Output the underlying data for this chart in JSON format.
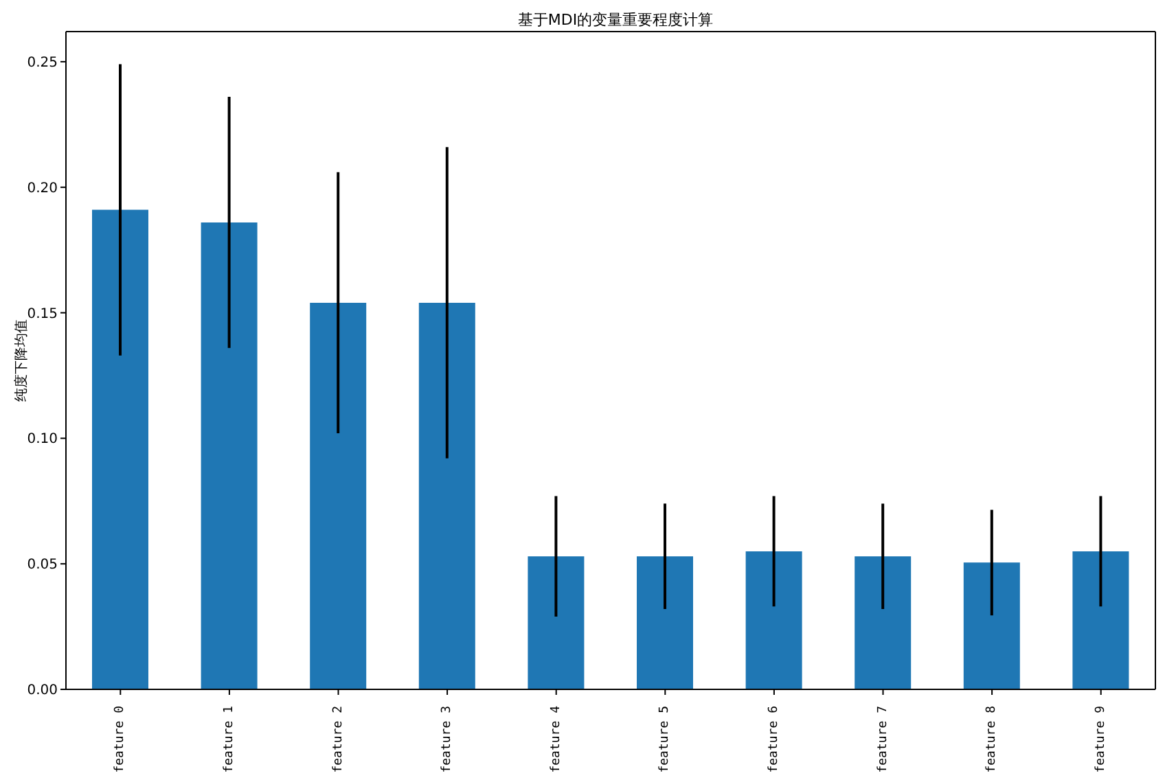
{
  "chart_data": {
    "type": "bar",
    "title": "基于MDI的变量重要程度计算",
    "ylabel": "纯度下降均值",
    "categories": [
      "feature 0",
      "feature 1",
      "feature 2",
      "feature 3",
      "feature 4",
      "feature 5",
      "feature 6",
      "feature 7",
      "feature 8",
      "feature 9"
    ],
    "values": [
      0.191,
      0.186,
      0.154,
      0.154,
      0.053,
      0.053,
      0.055,
      0.053,
      0.0505,
      0.055
    ],
    "errors": [
      0.058,
      0.05,
      0.052,
      0.062,
      0.024,
      0.021,
      0.022,
      0.021,
      0.021,
      0.022
    ],
    "color": "#1f77b4",
    "ylim": [
      0,
      0.262
    ],
    "yticks": [
      {
        "value": 0,
        "label": "0.00"
      },
      {
        "value": 0.05,
        "label": "0.05"
      },
      {
        "value": 0.1,
        "label": "0.10"
      },
      {
        "value": 0.15,
        "label": "0.15"
      },
      {
        "value": 0.2,
        "label": "0.20"
      },
      {
        "value": 0.25,
        "label": "0.25"
      }
    ],
    "grid": false,
    "legend": false
  }
}
